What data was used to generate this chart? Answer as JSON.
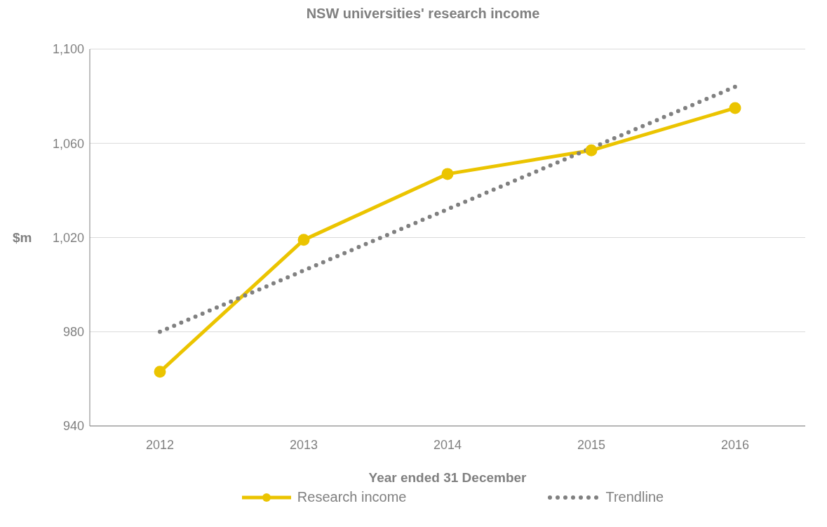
{
  "chart_data": {
    "type": "line",
    "title": "NSW universities' research income",
    "xlabel": "Year ended 31 December",
    "ylabel": "$m",
    "categories": [
      "2012",
      "2013",
      "2014",
      "2015",
      "2016"
    ],
    "series": [
      {
        "name": "Research income",
        "color": "#ebc400",
        "values": [
          963,
          1019,
          1047,
          1057,
          1075
        ],
        "marker": "circle",
        "line_style": "solid"
      },
      {
        "name": "Trendline",
        "color": "#808080",
        "values": [
          980,
          1006,
          1032,
          1058,
          1084
        ],
        "marker": "none",
        "line_style": "dotted"
      }
    ],
    "ylim": [
      940,
      1100
    ],
    "yticks": [
      {
        "value": 940,
        "label": "940"
      },
      {
        "value": 980,
        "label": "980"
      },
      {
        "value": 1020,
        "label": "1,020"
      },
      {
        "value": 1060,
        "label": "1,060"
      },
      {
        "value": 1100,
        "label": "1,100"
      }
    ],
    "grid": "y",
    "legend": "bottom"
  }
}
